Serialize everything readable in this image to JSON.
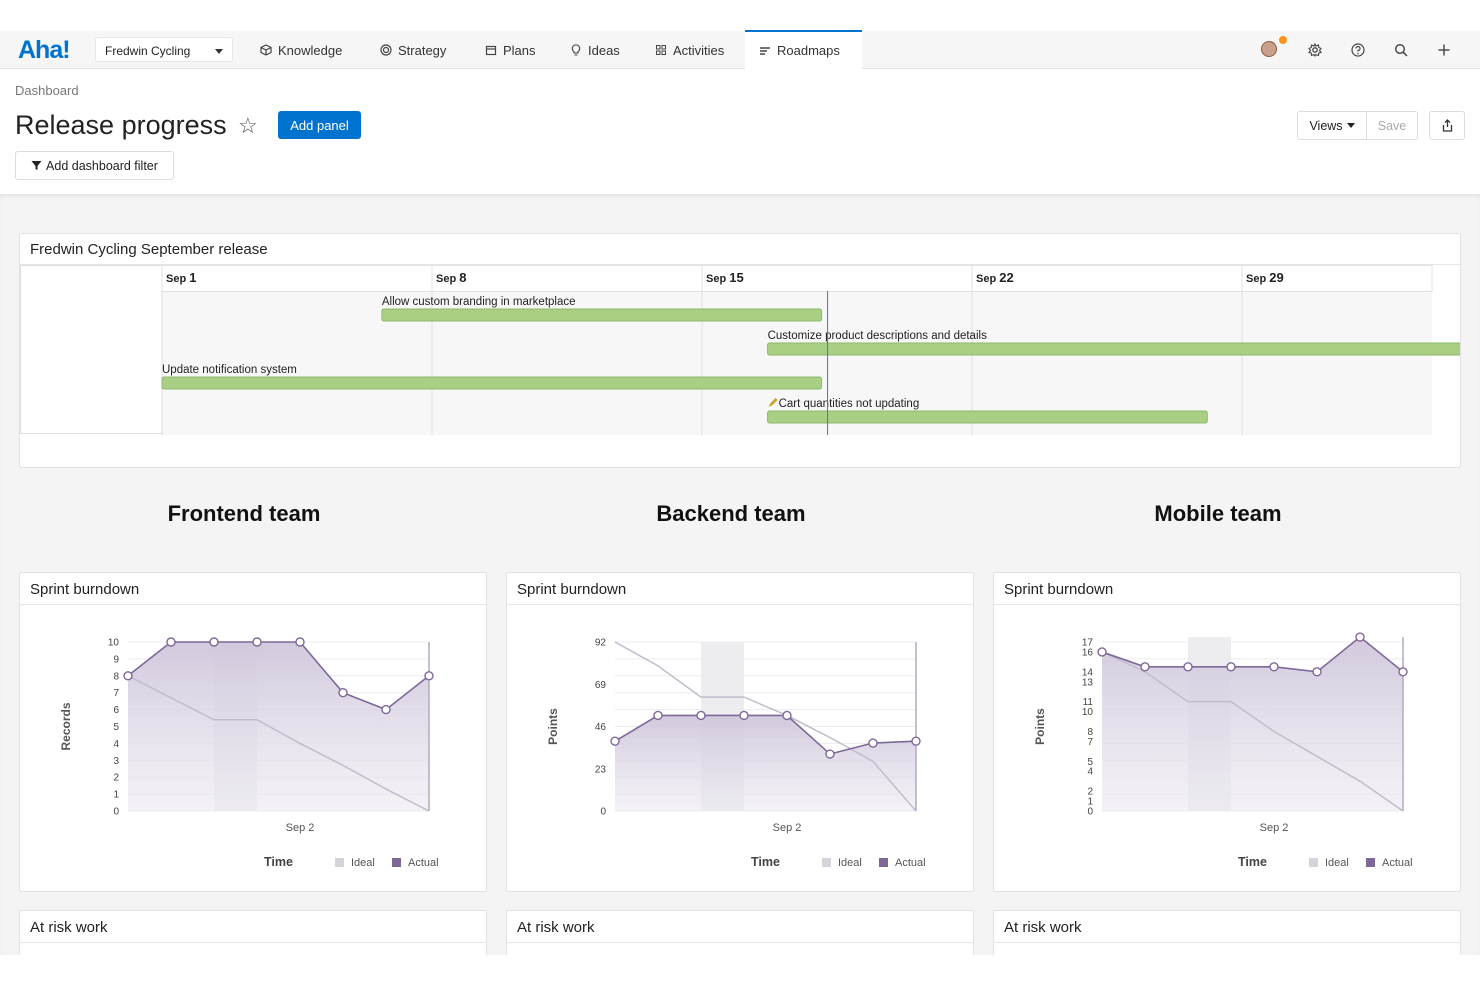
{
  "app": {
    "logo": "Aha!",
    "workspace": "Fredwin Cycling",
    "nav_tabs": [
      {
        "label": "Knowledge",
        "icon": "knowledge-icon"
      },
      {
        "label": "Strategy",
        "icon": "strategy-icon"
      },
      {
        "label": "Plans",
        "icon": "calendar-icon"
      },
      {
        "label": "Ideas",
        "icon": "lightbulb-icon"
      },
      {
        "label": "Activities",
        "icon": "grid-icon"
      },
      {
        "label": "Roadmaps",
        "icon": "roadmap-icon",
        "active": true
      }
    ],
    "tool_icons": [
      "avatar",
      "settings-icon",
      "help-icon",
      "search-icon",
      "plus-icon"
    ],
    "accent_color": "#0073cf",
    "notification_color": "#f7931e"
  },
  "header": {
    "breadcrumb": "Dashboard",
    "title": "Release progress",
    "add_panel": "Add panel",
    "add_filter": "Add dashboard filter",
    "views": "Views",
    "save": "Save"
  },
  "roadmap": {
    "title": "Fredwin Cycling September release",
    "dates": [
      {
        "month": "Sep",
        "day": "1"
      },
      {
        "month": "Sep",
        "day": "8"
      },
      {
        "month": "Sep",
        "day": "15"
      },
      {
        "month": "Sep",
        "day": "22"
      },
      {
        "month": "Sep",
        "day": "29"
      }
    ],
    "bars": [
      {
        "label": "Allow custom branding in marketplace",
        "start_day": 6.7,
        "end_day": 18.1
      },
      {
        "label": "Customize product descriptions and details",
        "start_day": 16.7,
        "end_day": 38.1
      },
      {
        "label": "Update notification system",
        "start_day": 1,
        "end_day": 18.1
      },
      {
        "label": "Cart quantities not updating",
        "start_day": 16.7,
        "end_day": 28.1,
        "icon": "pencil-icon"
      }
    ],
    "today_day": 18.1,
    "bar_color": "#a9cf85"
  },
  "teams": [
    "Frontend team",
    "Backend team",
    "Mobile team"
  ],
  "burndown_panels": [
    {
      "title": "Sprint burndown",
      "ylabel": "Records",
      "xlabel": "Time",
      "x_tick": "Sep 2",
      "legend": [
        "Ideal",
        "Actual"
      ]
    },
    {
      "title": "Sprint burndown",
      "ylabel": "Points",
      "xlabel": "Time",
      "x_tick": "Sep 2",
      "legend": [
        "Ideal",
        "Actual"
      ]
    },
    {
      "title": "Sprint burndown",
      "ylabel": "Points",
      "xlabel": "Time",
      "x_tick": "Sep 2",
      "legend": [
        "Ideal",
        "Actual"
      ]
    }
  ],
  "risk_panels": [
    {
      "title": "At risk work"
    },
    {
      "title": "At risk work"
    },
    {
      "title": "At risk work"
    }
  ],
  "chart_data": [
    {
      "type": "line",
      "ylabel": "Records",
      "xlabel": "Time",
      "ylim": [
        0,
        10
      ],
      "yticks": [
        "0",
        "1",
        "2",
        "3",
        "4",
        "5",
        "6",
        "7",
        "8",
        "9",
        "10"
      ],
      "ytick_values": [
        0,
        1,
        2,
        3,
        4,
        5,
        6,
        7,
        8,
        9,
        10
      ],
      "x": [
        0,
        1,
        2,
        3,
        4,
        5,
        6,
        7
      ],
      "series": [
        {
          "name": "Ideal",
          "values": [
            8,
            6.7,
            5.4,
            5.4,
            4,
            2.7,
            1.3,
            0
          ]
        },
        {
          "name": "Actual",
          "values": [
            8,
            10,
            10,
            10,
            10,
            7,
            6,
            8
          ]
        }
      ],
      "colors": {
        "ideal": "#c2bccb",
        "actual": "#7e6898"
      }
    },
    {
      "type": "line",
      "ylabel": "Points",
      "xlabel": "Time",
      "ylim": [
        0,
        92
      ],
      "yticks": [
        "0",
        "23",
        "46",
        "69",
        "92"
      ],
      "ytick_values": [
        0,
        23,
        46,
        69,
        92
      ],
      "x": [
        0,
        1,
        2,
        3,
        4,
        5,
        6,
        7
      ],
      "series": [
        {
          "name": "Ideal",
          "values": [
            92,
            79,
            62,
            62,
            52,
            40,
            27,
            0
          ]
        },
        {
          "name": "Actual",
          "values": [
            38,
            52,
            52,
            52,
            52,
            31,
            37,
            38
          ]
        }
      ],
      "colors": {
        "ideal": "#c2bccb",
        "actual": "#7e6898"
      }
    },
    {
      "type": "line",
      "ylabel": "Points",
      "xlabel": "Time",
      "ylim": [
        0,
        17
      ],
      "yticks": [
        "0",
        "1",
        "2",
        "4",
        "5",
        "7",
        "8",
        "10",
        "11",
        "13",
        "14",
        "16",
        "17"
      ],
      "ytick_values": [
        0,
        1,
        2,
        4,
        5,
        7,
        8,
        10,
        11,
        13,
        14,
        16,
        17
      ],
      "x": [
        0,
        1,
        2,
        3,
        4,
        5,
        6,
        7
      ],
      "series": [
        {
          "name": "Ideal",
          "values": [
            16,
            14,
            11,
            11,
            8,
            5.5,
            3,
            0
          ]
        },
        {
          "name": "Actual",
          "values": [
            16,
            14.5,
            14.5,
            14.5,
            14.5,
            14,
            17.5,
            14
          ]
        }
      ],
      "colors": {
        "ideal": "#c2bccb",
        "actual": "#7e6898"
      }
    }
  ]
}
